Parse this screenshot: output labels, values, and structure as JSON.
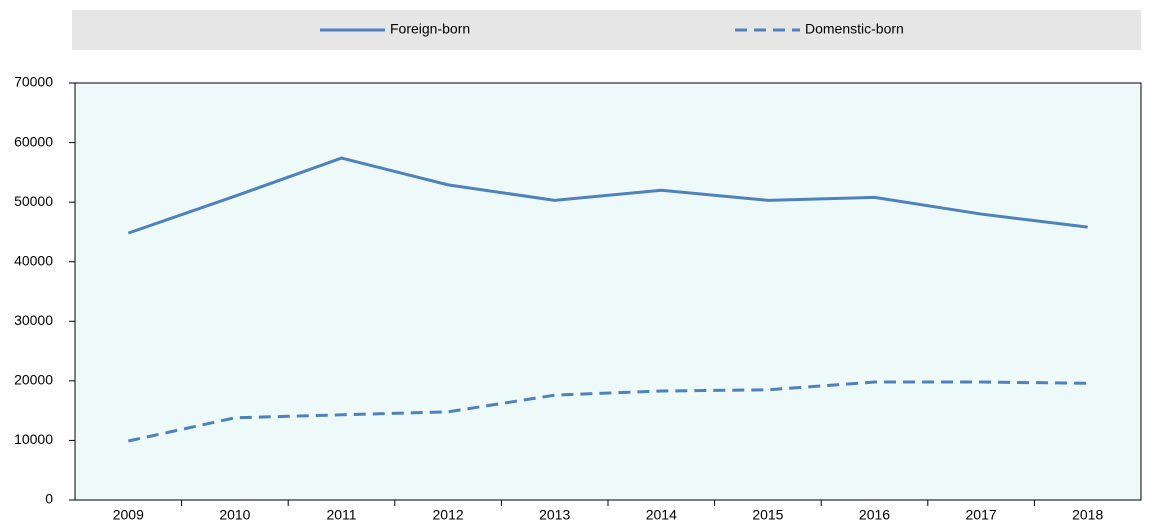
{
  "chart_data": {
    "type": "line",
    "categories": [
      "2009",
      "2010",
      "2011",
      "2012",
      "2013",
      "2014",
      "2015",
      "2016",
      "2017",
      "2018"
    ],
    "series": [
      {
        "name": "Foreign-born",
        "color": "#4f81bd",
        "dashed": false,
        "values": [
          44800,
          51000,
          57400,
          52900,
          50300,
          52000,
          50300,
          50800,
          48000,
          45800
        ]
      },
      {
        "name": "Domenstic-born",
        "color": "#4f81bd",
        "dashed": true,
        "values": [
          9900,
          13800,
          14300,
          14800,
          17600,
          18300,
          18500,
          19800,
          19800,
          19600
        ]
      }
    ],
    "ylim": [
      0,
      70000
    ],
    "yticks": [
      0,
      10000,
      20000,
      30000,
      40000,
      50000,
      60000,
      70000
    ],
    "grid": false,
    "legend": "top",
    "plot_background": "#eefafa"
  }
}
